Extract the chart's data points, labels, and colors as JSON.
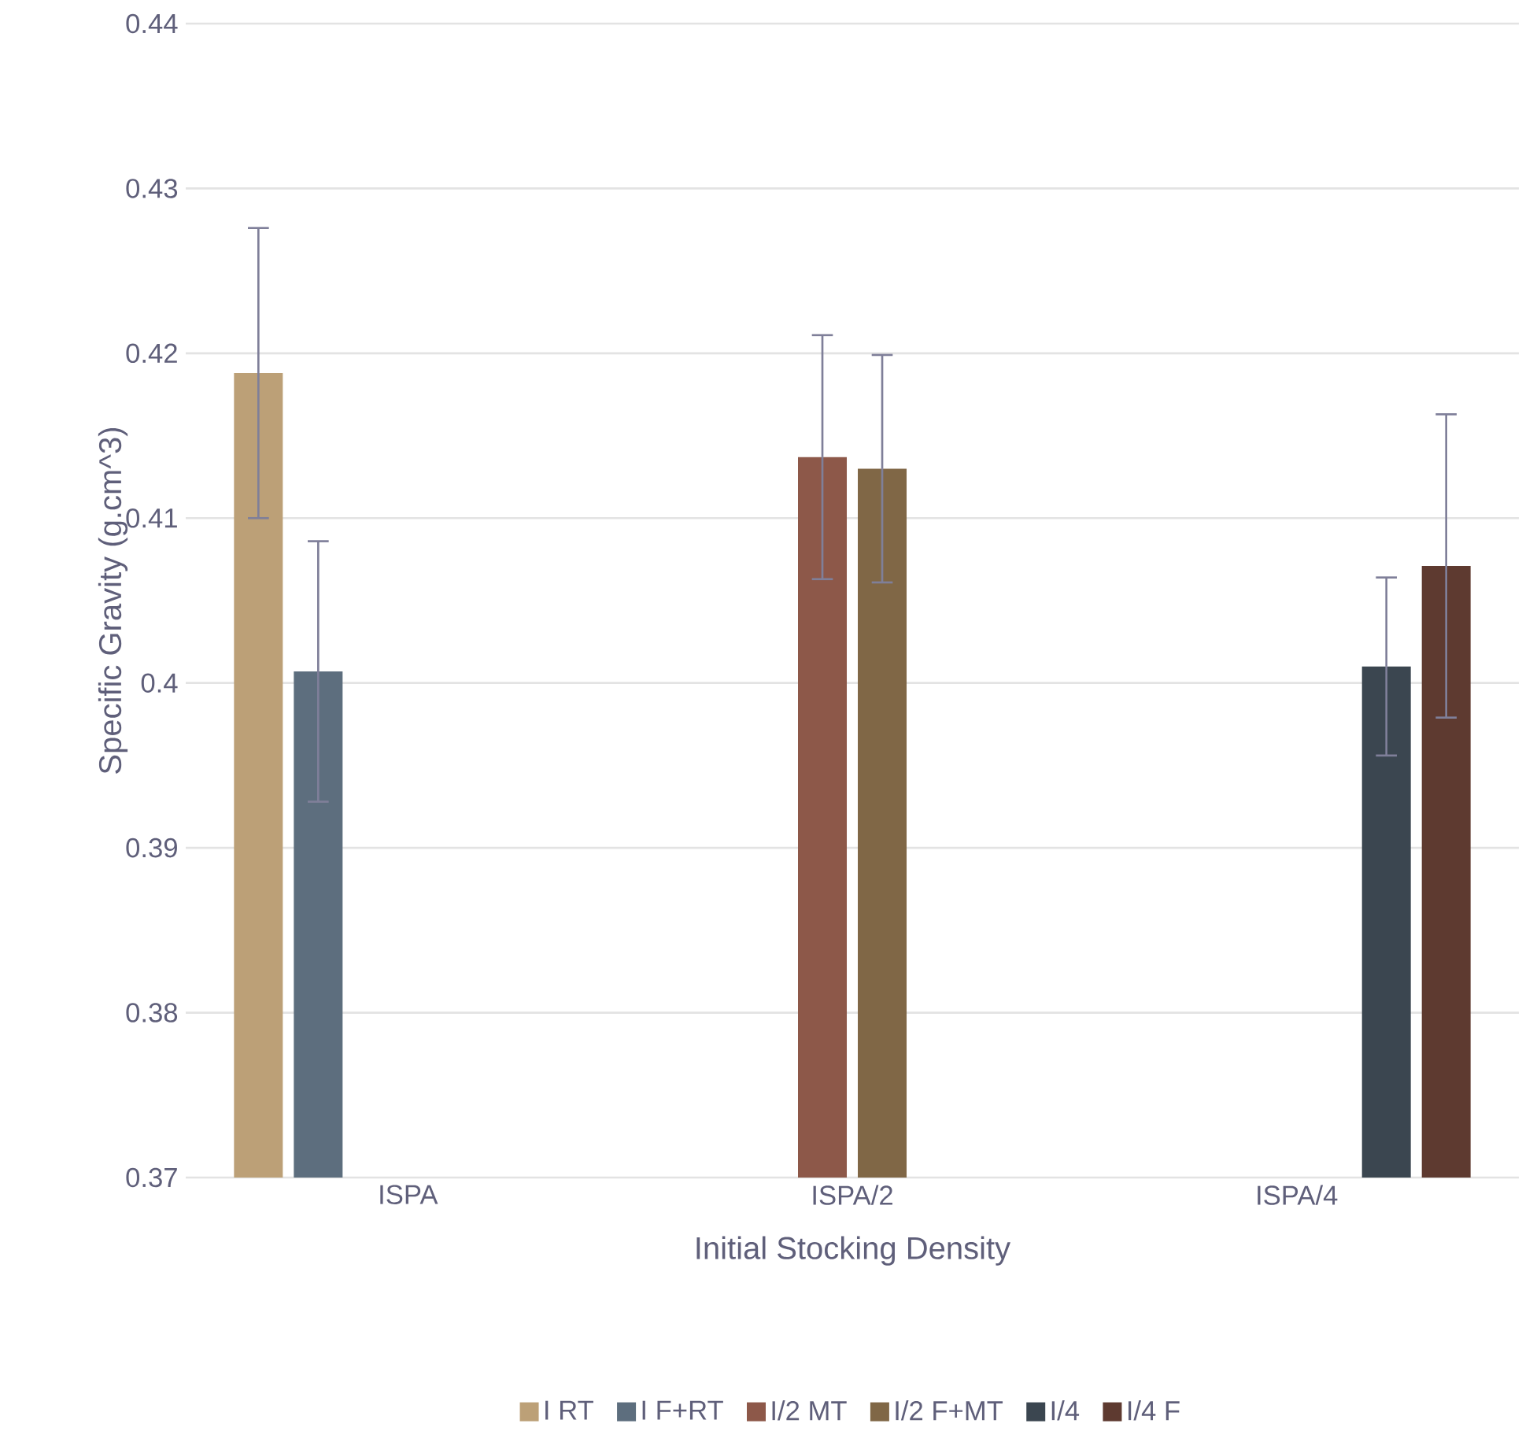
{
  "chart_data": {
    "type": "bar",
    "xlabel": "Initial Stocking Density",
    "ylabel": "Specific Gravity (g.cm^3)",
    "categories": [
      "ISPA",
      "ISPA/2",
      "ISPA/4"
    ],
    "ylim": [
      0.37,
      0.44
    ],
    "yticks": [
      0.37,
      0.38,
      0.39,
      0.4,
      0.41,
      0.42,
      0.43,
      0.44
    ],
    "grid": "y",
    "legend": "bottom",
    "series": [
      {
        "name": "I RT",
        "color": "#bca077",
        "values": [
          0.4188,
          null,
          null
        ],
        "errors": [
          0.0088,
          null,
          null
        ]
      },
      {
        "name": "I F+RT",
        "color": "#5d6e7e",
        "values": [
          0.4007,
          null,
          null
        ],
        "errors": [
          0.0079,
          null,
          null
        ]
      },
      {
        "name": "I/2 MT",
        "color": "#8d5849",
        "values": [
          null,
          0.4137,
          null
        ],
        "errors": [
          null,
          0.0074,
          null
        ]
      },
      {
        "name": "I/2 F+MT",
        "color": "#806746",
        "values": [
          null,
          0.413,
          null
        ],
        "errors": [
          null,
          0.0069,
          null
        ]
      },
      {
        "name": "I/4",
        "color": "#3b4650",
        "values": [
          null,
          null,
          0.401
        ],
        "errors": [
          null,
          null,
          0.0054
        ]
      },
      {
        "name": "I/4 F",
        "color": "#5e3a30",
        "values": [
          null,
          null,
          0.4071
        ],
        "errors": [
          null,
          null,
          0.0092
        ]
      }
    ]
  }
}
